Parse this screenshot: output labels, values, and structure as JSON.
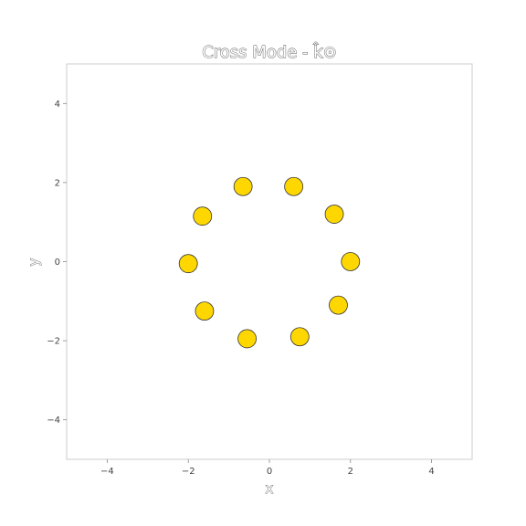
{
  "chart_data": {
    "type": "scatter",
    "title": "Cross Mode - k̂⊙",
    "xlabel": "x",
    "ylabel": "y",
    "xlim": [
      -5,
      5
    ],
    "ylim": [
      -5,
      5
    ],
    "xticks": [
      -4,
      -2,
      0,
      2,
      4
    ],
    "yticks": [
      -4,
      -2,
      0,
      2,
      4
    ],
    "xtick_labels": [
      "−4",
      "−2",
      "0",
      "2",
      "4"
    ],
    "ytick_labels": [
      "−4",
      "−2",
      "0",
      "2",
      "4"
    ],
    "grid": false,
    "marker_color": "#ffd700",
    "marker_edge_color": "#333333",
    "points": [
      {
        "x": 2.0,
        "y": 0.0
      },
      {
        "x": 1.7,
        "y": -1.1
      },
      {
        "x": 0.75,
        "y": -1.9
      },
      {
        "x": -0.55,
        "y": -1.95
      },
      {
        "x": -1.6,
        "y": -1.25
      },
      {
        "x": -2.0,
        "y": -0.05
      },
      {
        "x": -1.65,
        "y": 1.15
      },
      {
        "x": -0.65,
        "y": 1.9
      },
      {
        "x": 0.6,
        "y": 1.9
      },
      {
        "x": 1.6,
        "y": 1.2
      }
    ]
  }
}
